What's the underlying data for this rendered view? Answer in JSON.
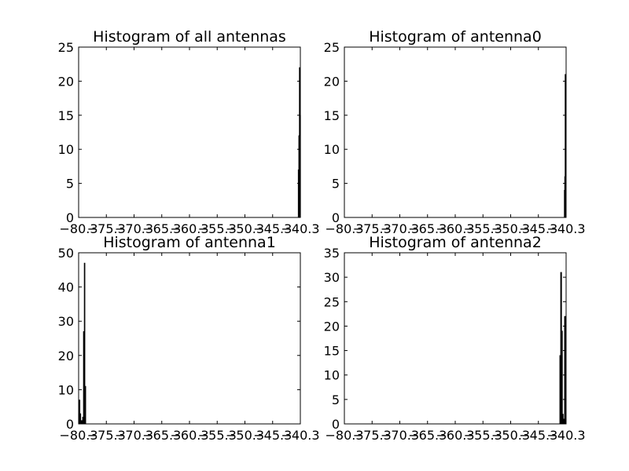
{
  "chart_data": [
    {
      "type": "bar",
      "title": "Histogram of all antennas",
      "xlim": [
        -80.3,
        -40.3
      ],
      "ylim": [
        0,
        25
      ],
      "xticks": [
        "−80.3",
        "−75.3",
        "−70.3",
        "−65.3",
        "−60.3",
        "−55.3",
        "−50.3",
        "−45.3",
        "−40.3"
      ],
      "yticks": [
        "0",
        "5",
        "10",
        "15",
        "20",
        "25"
      ],
      "yticks_values": [
        0,
        5,
        10,
        15,
        20,
        25
      ],
      "xticks_values": [
        -80.3,
        -75.3,
        -70.3,
        -65.3,
        -60.3,
        -55.3,
        -50.3,
        -45.3,
        -40.3
      ],
      "bins": [
        {
          "x0": -40.7,
          "x1": -40.6,
          "value": 7
        },
        {
          "x0": -40.6,
          "x1": -40.5,
          "value": 12
        },
        {
          "x0": -40.5,
          "x1": -40.4,
          "value": 22
        },
        {
          "x0": -40.4,
          "x1": -40.3,
          "value": 15
        }
      ]
    },
    {
      "type": "bar",
      "title": "Histogram of antenna0",
      "xlim": [
        -80.3,
        -40.3
      ],
      "ylim": [
        0,
        25
      ],
      "xticks": [
        "−80.3",
        "−75.3",
        "−70.3",
        "−65.3",
        "−60.3",
        "−55.3",
        "−50.3",
        "−45.3",
        "−40.3"
      ],
      "yticks": [
        "0",
        "5",
        "10",
        "15",
        "20",
        "25"
      ],
      "yticks_values": [
        0,
        5,
        10,
        15,
        20,
        25
      ],
      "xticks_values": [
        -80.3,
        -75.3,
        -70.3,
        -65.3,
        -60.3,
        -55.3,
        -50.3,
        -45.3,
        -40.3
      ],
      "bins": [
        {
          "x0": -40.64,
          "x1": -40.57,
          "value": 4
        },
        {
          "x0": -40.57,
          "x1": -40.5,
          "value": 6
        },
        {
          "x0": -40.5,
          "x1": -40.3,
          "value": 21
        }
      ]
    },
    {
      "type": "bar",
      "title": "Histogram of antenna1",
      "xlim": [
        -80.3,
        -40.3
      ],
      "ylim": [
        0,
        50
      ],
      "xticks": [
        "−80.3",
        "−75.3",
        "−70.3",
        "−65.3",
        "−60.3",
        "−55.3",
        "−50.3",
        "−45.3",
        "−40.3"
      ],
      "yticks": [
        "0",
        "10",
        "20",
        "30",
        "40",
        "50"
      ],
      "yticks_values": [
        0,
        10,
        20,
        30,
        40,
        50
      ],
      "xticks_values": [
        -80.3,
        -75.3,
        -70.3,
        -65.3,
        -60.3,
        -55.3,
        -50.3,
        -45.3,
        -40.3
      ],
      "bins": [
        {
          "x0": -80.3,
          "x1": -80.2,
          "value": 2
        },
        {
          "x0": -80.2,
          "x1": -80.05,
          "value": 7
        },
        {
          "x0": -80.05,
          "x1": -79.9,
          "value": 3
        },
        {
          "x0": -79.9,
          "x1": -79.6,
          "value": 1
        },
        {
          "x0": -79.6,
          "x1": -79.45,
          "value": 2
        },
        {
          "x0": -79.45,
          "x1": -79.3,
          "value": 27
        },
        {
          "x0": -79.3,
          "x1": -79.15,
          "value": 47
        },
        {
          "x0": -79.15,
          "x1": -79.0,
          "value": 11
        }
      ]
    },
    {
      "type": "bar",
      "title": "Histogram of antenna2",
      "xlim": [
        -80.3,
        -40.3
      ],
      "ylim": [
        0,
        35
      ],
      "xticks": [
        "−80.3",
        "−75.3",
        "−70.3",
        "−65.3",
        "−60.3",
        "−55.3",
        "−50.3",
        "−45.3",
        "−40.3"
      ],
      "yticks": [
        "0",
        "5",
        "10",
        "15",
        "20",
        "25",
        "30",
        "35"
      ],
      "yticks_values": [
        0,
        5,
        10,
        15,
        20,
        25,
        30,
        35
      ],
      "xticks_values": [
        -80.3,
        -75.3,
        -70.3,
        -65.3,
        -60.3,
        -55.3,
        -50.3,
        -45.3,
        -40.3
      ],
      "bins": [
        {
          "x0": -41.45,
          "x1": -41.3,
          "value": 14
        },
        {
          "x0": -41.3,
          "x1": -41.1,
          "value": 31
        },
        {
          "x0": -41.1,
          "x1": -40.95,
          "value": 19
        },
        {
          "x0": -40.95,
          "x1": -40.8,
          "value": 2
        },
        {
          "x0": -40.8,
          "x1": -40.6,
          "value": 1
        },
        {
          "x0": -40.6,
          "x1": -40.3,
          "value": 22
        }
      ]
    }
  ]
}
